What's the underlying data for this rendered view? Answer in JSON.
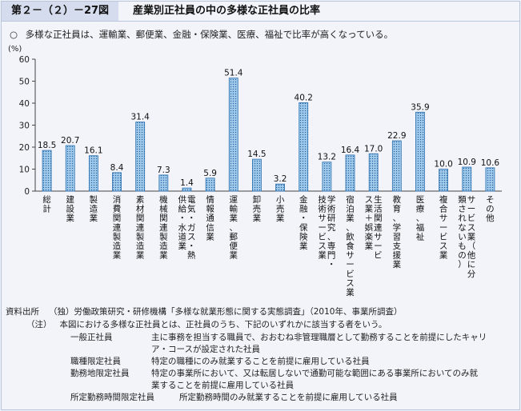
{
  "figure": {
    "number": "第２－（２）－27図",
    "title": "産業別正社員の中の多様な正社員の比率"
  },
  "lead": {
    "mark": "○",
    "text": "多様な正社員は、運輸業、郵便業、金融・保険業、医療、福祉で比率が高くなっている。"
  },
  "chart_data": {
    "type": "bar",
    "ylabel": "(%)",
    "ylim": [
      0,
      60
    ],
    "yticks": [
      "0",
      "10",
      "20",
      "30",
      "40",
      "50",
      "60"
    ],
    "categories": [
      "総計",
      "建設業",
      "製造業",
      "消費関連製造業",
      "素材関連製造業",
      "機械関連製造業",
      "電気・ガス・熱供給・水道業",
      "情報通信業",
      "運輸業、郵便業",
      "卸売業",
      "小売業",
      "金融・保険業",
      "学術研究、専門・技術サービス業",
      "宿泊業、飲食サービス業",
      "生活関連サービス業＋娯楽業",
      "教育、学習支援業",
      "医療、福祉",
      "複合サービス業",
      "サービス業（他に分類されないもの）",
      "その他"
    ],
    "values": [
      18.5,
      20.7,
      16.1,
      8.4,
      31.4,
      7.3,
      1.4,
      5.9,
      51.4,
      14.5,
      3.2,
      40.2,
      13.2,
      16.4,
      17.0,
      22.9,
      35.9,
      10.0,
      10.9,
      10.6
    ],
    "value_labels": [
      "18.5",
      "20.7",
      "16.1",
      "8.4",
      "31.4",
      "7.3",
      "1.4",
      "5.9",
      "51.4",
      "14.5",
      "3.2",
      "40.2",
      "13.2",
      "16.4",
      "17.0",
      "22.9",
      "35.9",
      "10.0",
      "10.9",
      "10.6"
    ]
  },
  "colors": {
    "bar_fill": "#9fc9ea",
    "bar_stroke": "#2a6fae",
    "bar_dot": "#1f5f9a",
    "axis": "#444444",
    "frame_border": "#b9c6dd",
    "title_bg": "#d5dcee"
  },
  "notes": {
    "source_label": "資料出所",
    "source_text": "（独）労働政策研究・研修機構「多様な就業形態に関する実態調査」（2010年、事業所調査）",
    "note_label": "（注）",
    "note_intro": "本図における多様な正社員とは、正社員のうち、下記のいずれかに該当する者をいう。",
    "definitions": [
      {
        "term": "一般正社員",
        "lines": [
          "主に事務を担当する職員で、おおむね非管理職層として勤務することを前提にしたキャリ",
          "ア・コースが設定された社員"
        ]
      },
      {
        "term": "職種限定社員",
        "lines": [
          "特定の職種にのみ就業することを前提に雇用している社員"
        ]
      },
      {
        "term": "勤務地限定社員",
        "lines": [
          "特定の事業所において、又は転居しないで通勤可能な範囲にある事業所においてのみ就",
          "業することを前提に雇用している社員"
        ]
      },
      {
        "term": "所定勤務時間限定社員",
        "lines": [
          "所定勤務時間のみ就業することを前提に雇用している社員"
        ]
      }
    ]
  }
}
